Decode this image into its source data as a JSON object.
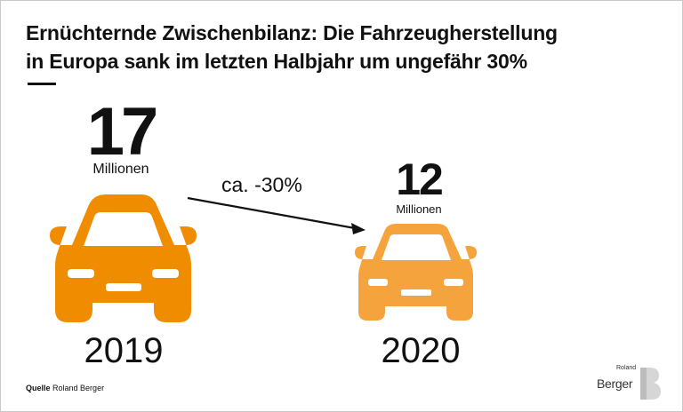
{
  "title": {
    "line1": "Ernüchternde Zwischenbilanz: Die Fahrzeugherstellung",
    "line2": "in Europa sank im letzten Halbjahr um ungefähr 30%"
  },
  "items": [
    {
      "value": "17",
      "unit": "Millionen",
      "year": "2019",
      "color": "#f08c00"
    },
    {
      "value": "12",
      "unit": "Millionen",
      "year": "2020",
      "color": "#f5a33c"
    }
  ],
  "change_label": "ca. -30%",
  "source": {
    "label": "Quelle",
    "text": "Roland Berger"
  },
  "logo": {
    "small": "Roland",
    "big": "Berger",
    "mark": "B"
  },
  "colors": {
    "car_2019": "#f08c00",
    "car_2020": "#f5a33c",
    "text": "#111111"
  }
}
